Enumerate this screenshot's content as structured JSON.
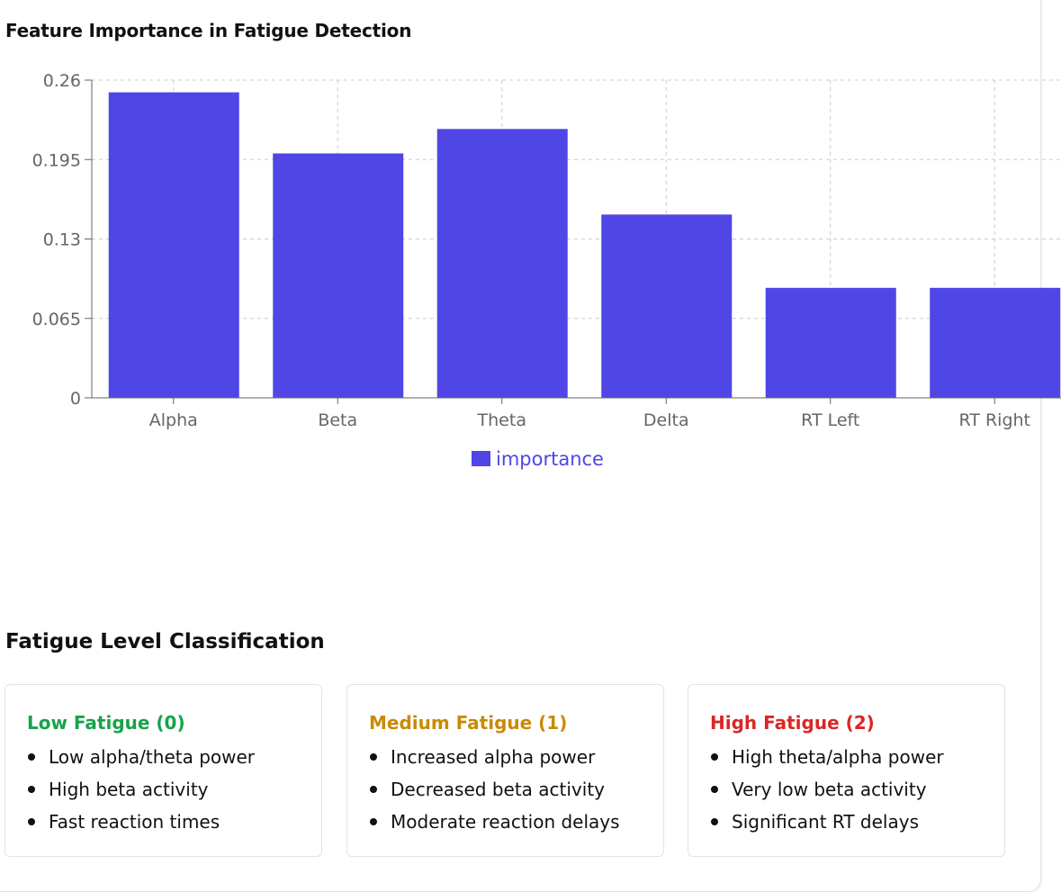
{
  "chart_data": {
    "type": "bar",
    "title": "Feature Importance in Fatigue Detection",
    "categories": [
      "Alpha",
      "Beta",
      "Theta",
      "Delta",
      "RT Left",
      "RT Right"
    ],
    "series": [
      {
        "name": "importance",
        "values": [
          0.25,
          0.2,
          0.22,
          0.15,
          0.09,
          0.09
        ]
      }
    ],
    "yticks": [
      "0",
      "0.065",
      "0.13",
      "0.195",
      "0.26"
    ],
    "ylim": [
      0,
      0.26
    ],
    "grid": true,
    "legend": "bottom-center",
    "bar_color": "#4f46e5"
  },
  "classification": {
    "title": "Fatigue Level Classification",
    "levels": [
      {
        "title": "Low Fatigue (0)",
        "color": "#16a34a",
        "items": [
          "Low alpha/theta power",
          "High beta activity",
          "Fast reaction times"
        ]
      },
      {
        "title": "Medium Fatigue (1)",
        "color": "#ca8a04",
        "items": [
          "Increased alpha power",
          "Decreased beta activity",
          "Moderate reaction delays"
        ]
      },
      {
        "title": "High Fatigue (2)",
        "color": "#dc2626",
        "items": [
          "High theta/alpha power",
          "Very low beta activity",
          "Significant RT delays"
        ]
      }
    ]
  }
}
